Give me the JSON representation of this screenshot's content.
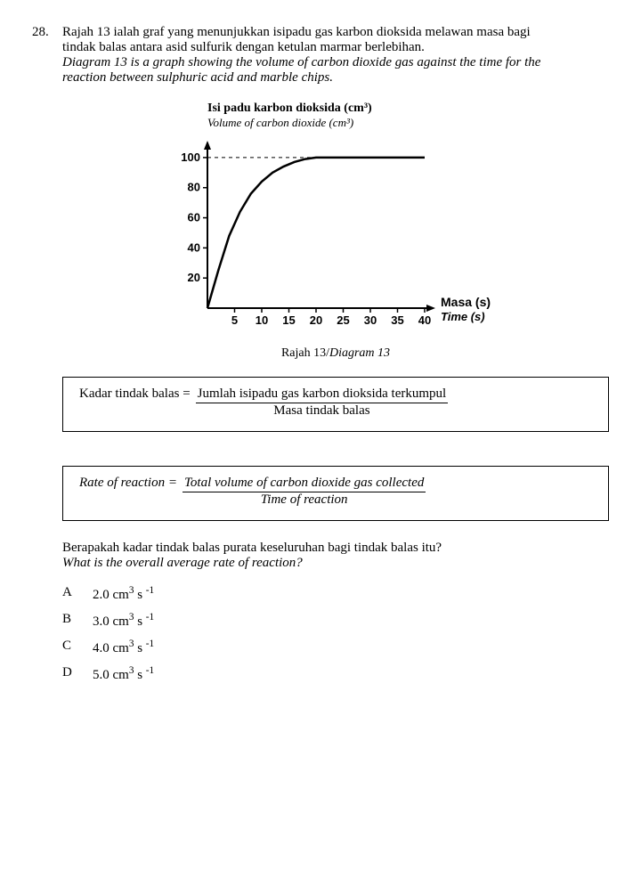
{
  "question": {
    "number": "28.",
    "text_bm_l1": "Rajah 13 ialah graf yang menunjukkan isipadu gas karbon dioksida melawan masa bagi",
    "text_bm_l2": "tindak balas antara asid sulfurik dengan ketulan marmar berlebihan.",
    "text_en_l1": "Diagram 13 is a graph showing the volume of carbon dioxide gas against the time for the",
    "text_en_l2": "reaction between sulphuric acid and marble chips."
  },
  "chart": {
    "type": "line",
    "y_title_bm": "Isi padu karbon dioksida (cm³)",
    "y_title_en": "Volume of carbon dioxide (cm³)",
    "x_label_bm": "Masa (s)",
    "x_label_en": "Time (s)",
    "caption_bm": "Rajah 13",
    "caption_en": "Diagram 13",
    "x_ticks": [
      5,
      10,
      15,
      20,
      25,
      30,
      35,
      40
    ],
    "y_ticks": [
      20,
      40,
      60,
      80,
      100
    ],
    "xlim": [
      0,
      40
    ],
    "ylim": [
      0,
      110
    ],
    "curve_points": [
      [
        0,
        0
      ],
      [
        2,
        25
      ],
      [
        4,
        48
      ],
      [
        6,
        64
      ],
      [
        8,
        76
      ],
      [
        10,
        84
      ],
      [
        12,
        90
      ],
      [
        14,
        94
      ],
      [
        16,
        97
      ],
      [
        18,
        99
      ],
      [
        20,
        100
      ],
      [
        40,
        100
      ]
    ],
    "plateau_y": 100,
    "line_color": "#000000",
    "line_width": 2.5,
    "axis_color": "#000000",
    "axis_width": 2,
    "dash_color": "#000000",
    "background": "#ffffff",
    "tick_fontsize": 13,
    "label_fontsize": 14
  },
  "formula_bm": {
    "lhs": "Kadar tindak balas  =",
    "top": "Jumlah isipadu gas karbon dioksida terkumpul",
    "bottom": "Masa tindak balas"
  },
  "formula_en": {
    "lhs": "Rate of reaction  =",
    "top": "Total volume of carbon dioxide gas collected",
    "bottom": "Time of reaction"
  },
  "sub_question": {
    "bm": "Berapakah kadar tindak balas purata keseluruhan bagi tindak balas itu?",
    "en": "What is the overall average rate of reaction?"
  },
  "options": [
    {
      "letter": "A",
      "value": "2.0 cm³ s ⁻¹"
    },
    {
      "letter": "B",
      "value": "3.0 cm³ s ⁻¹"
    },
    {
      "letter": "C",
      "value": "4.0 cm³ s ⁻¹"
    },
    {
      "letter": "D",
      "value": "5.0 cm³ s ⁻¹"
    }
  ]
}
